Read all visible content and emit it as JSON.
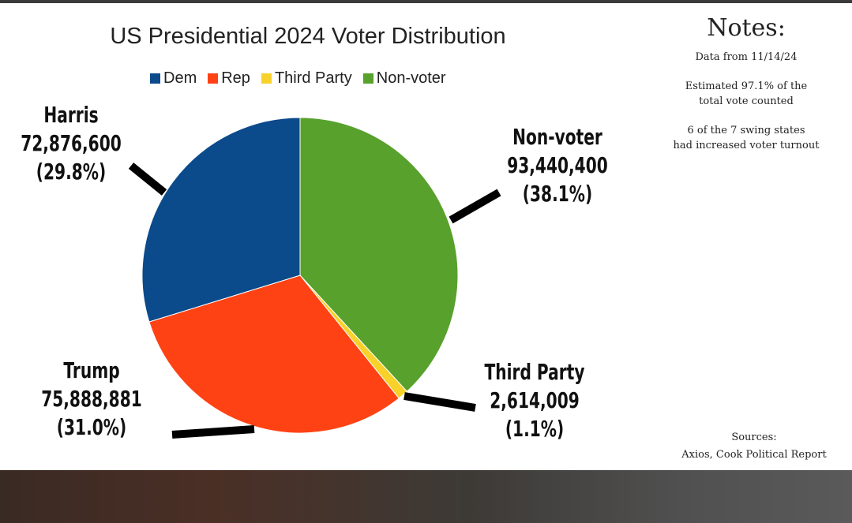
{
  "chart_data": {
    "type": "pie",
    "title": "US Presidential 2024 Voter Distribution",
    "legend": {
      "placement": "top",
      "entries": [
        "Dem",
        "Rep",
        "Third Party",
        "Non-voter"
      ]
    },
    "slices": [
      {
        "legend": "Non-voter",
        "name": "Non-voter",
        "value": 93440400,
        "value_text": "93,440,400",
        "percent": 38.1,
        "percent_text": "(38.1%)",
        "color": "#57A12C"
      },
      {
        "legend": "Third Party",
        "name": "Third Party",
        "value": 2614009,
        "value_text": "2,614,009",
        "percent": 1.1,
        "percent_text": "(1.1%)",
        "color": "#F8D22A"
      },
      {
        "legend": "Rep",
        "name": "Trump",
        "value": 75888881,
        "value_text": "75,888,881",
        "percent": 31.0,
        "percent_text": "(31.0%)",
        "color": "#FF4214"
      },
      {
        "legend": "Dem",
        "name": "Harris",
        "value": 72876600,
        "value_text": "72,876,600",
        "percent": 29.8,
        "percent_text": "(29.8%)",
        "color": "#0B4A8B"
      }
    ]
  },
  "notes": {
    "title": "Notes:",
    "lines": [
      [
        "Data from 11/14/24"
      ],
      [
        "Estimated 97.1% of the",
        "total vote counted"
      ],
      [
        "6 of the 7 swing states",
        "had increased voter turnout"
      ]
    ]
  },
  "sources": {
    "label": "Sources:",
    "text": "Axios, Cook Political Report"
  }
}
